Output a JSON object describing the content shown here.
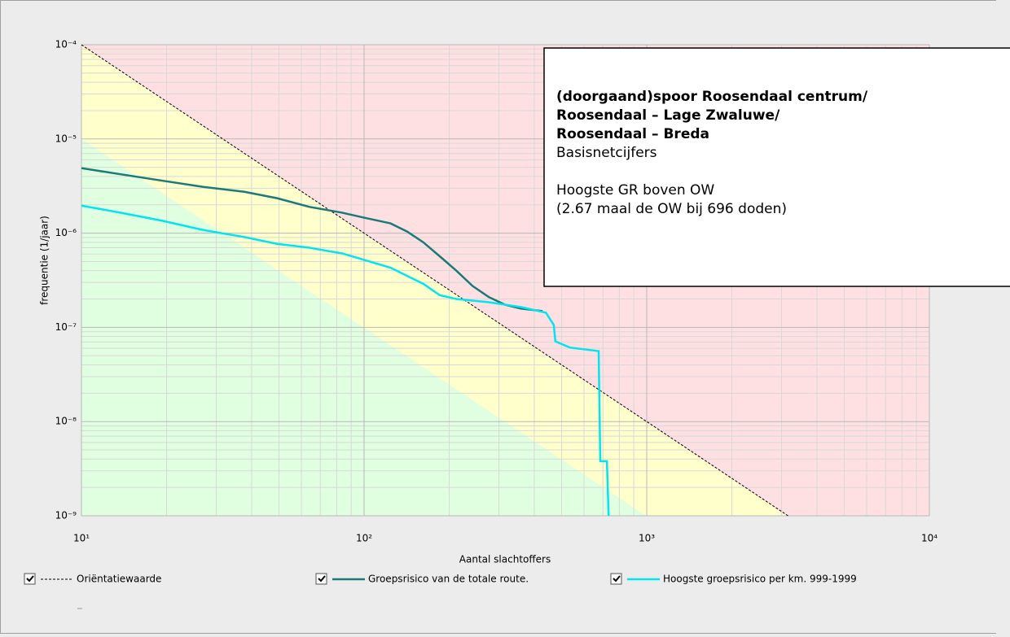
{
  "chart_data": {
    "type": "line",
    "x_label": "Aantal slachtoffers",
    "y_label": "frequentie (1/jaar)",
    "xscale": "log",
    "yscale": "log",
    "grid": true,
    "minor_grid": true,
    "xlim": [
      10,
      10000
    ],
    "ylim": [
      1e-09,
      0.0001
    ],
    "xticks": [
      {
        "value": 10,
        "label": "10¹"
      },
      {
        "value": 100,
        "label": "10²"
      },
      {
        "value": 1000,
        "label": "10³"
      },
      {
        "value": 10000,
        "label": "10⁴"
      }
    ],
    "yticks": [
      {
        "value": 1e-09,
        "label": "10⁻⁹"
      },
      {
        "value": 1e-08,
        "label": "10⁻⁸"
      },
      {
        "value": 1e-07,
        "label": "10⁻⁷"
      },
      {
        "value": 1e-06,
        "label": "10⁻⁶"
      },
      {
        "value": 1e-05,
        "label": "10⁻⁵"
      },
      {
        "value": 0.0001,
        "label": "10⁻⁴"
      }
    ],
    "series": [
      {
        "name": "Oriëntatiewaarde",
        "color": "#000000",
        "dashed": true,
        "x": [
          10,
          3162
        ],
        "values": [
          0.0001,
          1e-09
        ]
      },
      {
        "name": "Groepsrisico van de totale route.",
        "color": "#1a7a78",
        "dashed": false,
        "x": [
          10,
          13.9,
          19.4,
          27,
          37.7,
          49.2,
          64.1,
          83.6,
          100,
          124,
          142,
          162,
          185,
          212,
          242,
          276,
          315,
          360,
          428
        ],
        "values": [
          4.9e-06,
          4.2e-06,
          3.6e-06,
          3.1e-06,
          2.75e-06,
          2.35e-06,
          1.9e-06,
          1.65e-06,
          1.46e-06,
          1.27e-06,
          1.04e-06,
          8e-07,
          5.7e-07,
          4e-07,
          2.75e-07,
          2.1e-07,
          1.74e-07,
          1.58e-07,
          1.49e-07
        ]
      },
      {
        "name": "Hoogste groepsrisico per km. 999-1999",
        "color": "#00e5f0",
        "dashed": false,
        "x": [
          10,
          13.9,
          19.4,
          27,
          37.7,
          49.2,
          64.1,
          83.6,
          100,
          124,
          162,
          185,
          212,
          276,
          360,
          440,
          469,
          475,
          536,
          676,
          685,
          723,
          733
        ],
        "values": [
          1.96e-06,
          1.64e-06,
          1.35e-06,
          1.08e-06,
          9.1e-07,
          7.7e-07,
          7e-07,
          6.1e-07,
          5.2e-07,
          4.3e-07,
          2.9e-07,
          2.2e-07,
          2e-07,
          1.85e-07,
          1.64e-07,
          1.43e-07,
          1.06e-07,
          7.1e-08,
          6.1e-08,
          5.6e-08,
          3.8e-09,
          3.8e-09,
          1e-09
        ]
      }
    ],
    "annotation": {
      "bold_lines": [
        "(doorgaand)spoor Roosendaal centrum/",
        "Roosendaal – Lage Zwaluwe/",
        "Roosendaal – Breda"
      ],
      "lines": [
        "Basisnetcijfers",
        "",
        "Hoogste GR boven OW",
        "(2.67 maal de OW bij 696 doden)"
      ]
    }
  }
}
